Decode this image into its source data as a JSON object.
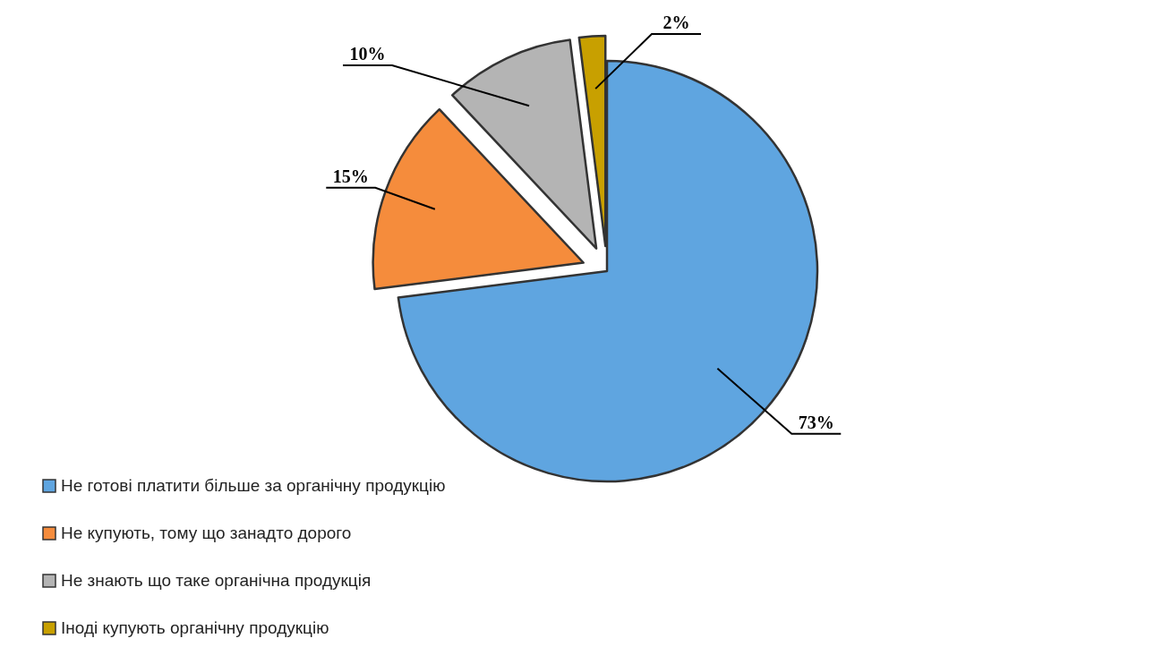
{
  "chart_data": {
    "type": "pie",
    "categories": [
      "Не готові платити більше за органічну продукцію",
      "Не купують, тому що занадто дорого",
      "Не знають що таке органічна продукція",
      "Іноді купують органічну продукцію"
    ],
    "values": [
      73,
      15,
      10,
      2
    ],
    "colors": [
      "#5fa5e0",
      "#f58c3c",
      "#b4b4b4",
      "#c8a000"
    ],
    "value_labels": [
      "73%",
      "15%",
      "10%",
      "2%"
    ],
    "legend": "bottom"
  }
}
